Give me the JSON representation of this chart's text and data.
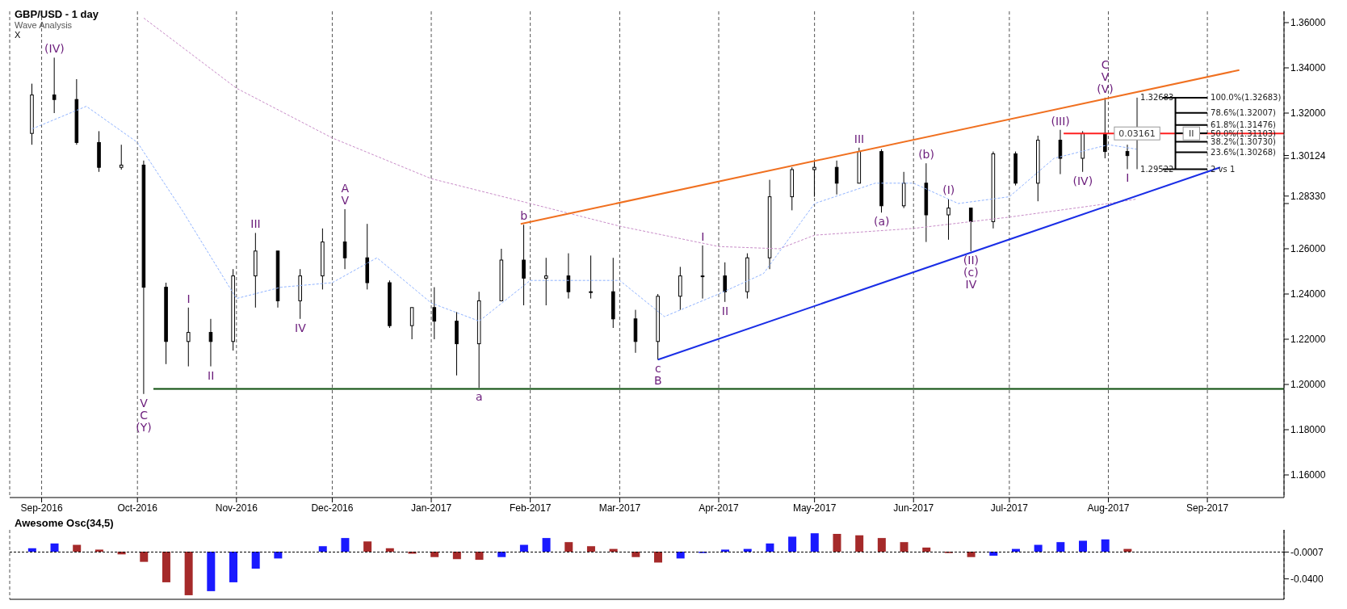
{
  "chart_data": [
    {
      "type": "candlestick",
      "title": "GBP/USD - 1 day",
      "subtitle": "Wave Analysis",
      "x": [
        "2016-08-29",
        "2016-09-05",
        "2016-09-12",
        "2016-09-19",
        "2016-09-26",
        "2016-10-03",
        "2016-10-10",
        "2016-10-17",
        "2016-10-24",
        "2016-10-31",
        "2016-11-07",
        "2016-11-14",
        "2016-11-21",
        "2016-11-28",
        "2016-12-05",
        "2016-12-12",
        "2016-12-19",
        "2016-12-26",
        "2017-01-02",
        "2017-01-09",
        "2017-01-16",
        "2017-01-23",
        "2017-01-30",
        "2017-02-06",
        "2017-02-13",
        "2017-02-20",
        "2017-02-27",
        "2017-03-06",
        "2017-03-13",
        "2017-03-20",
        "2017-03-27",
        "2017-04-03",
        "2017-04-10",
        "2017-04-17",
        "2017-04-24",
        "2017-05-01",
        "2017-05-08",
        "2017-05-15",
        "2017-05-22",
        "2017-05-29",
        "2017-06-05",
        "2017-06-12",
        "2017-06-19",
        "2017-06-26",
        "2017-07-03",
        "2017-07-10",
        "2017-07-17",
        "2017-07-24",
        "2017-07-31",
        "2017-08-07"
      ],
      "ohlc": [
        [
          1.311,
          1.333,
          1.306,
          1.328
        ],
        [
          1.328,
          1.3445,
          1.32,
          1.326
        ],
        [
          1.326,
          1.335,
          1.306,
          1.307
        ],
        [
          1.307,
          1.312,
          1.294,
          1.296
        ],
        [
          1.296,
          1.306,
          1.295,
          1.297
        ],
        [
          1.297,
          1.299,
          1.1958,
          1.243
        ],
        [
          1.243,
          1.245,
          1.209,
          1.219
        ],
        [
          1.219,
          1.234,
          1.208,
          1.223
        ],
        [
          1.223,
          1.229,
          1.208,
          1.219
        ],
        [
          1.219,
          1.251,
          1.215,
          1.248
        ],
        [
          1.248,
          1.267,
          1.234,
          1.259
        ],
        [
          1.259,
          1.259,
          1.234,
          1.237
        ],
        [
          1.237,
          1.251,
          1.229,
          1.248
        ],
        [
          1.248,
          1.269,
          1.242,
          1.263
        ],
        [
          1.263,
          1.2775,
          1.251,
          1.256
        ],
        [
          1.256,
          1.271,
          1.242,
          1.245
        ],
        [
          1.245,
          1.246,
          1.225,
          1.226
        ],
        [
          1.226,
          1.234,
          1.22,
          1.234
        ],
        [
          1.234,
          1.243,
          1.22,
          1.228
        ],
        [
          1.228,
          1.232,
          1.204,
          1.218
        ],
        [
          1.218,
          1.241,
          1.1985,
          1.237
        ],
        [
          1.237,
          1.26,
          1.237,
          1.255
        ],
        [
          1.255,
          1.2706,
          1.235,
          1.247
        ],
        [
          1.247,
          1.256,
          1.235,
          1.248
        ],
        [
          1.248,
          1.258,
          1.238,
          1.241
        ],
        [
          1.241,
          1.257,
          1.238,
          1.241
        ],
        [
          1.241,
          1.256,
          1.225,
          1.229
        ],
        [
          1.229,
          1.233,
          1.214,
          1.219
        ],
        [
          1.219,
          1.24,
          1.2109,
          1.239
        ],
        [
          1.239,
          1.252,
          1.233,
          1.248
        ],
        [
          1.248,
          1.2615,
          1.238,
          1.248
        ],
        [
          1.248,
          1.254,
          1.2365,
          1.241
        ],
        [
          1.241,
          1.258,
          1.238,
          1.256
        ],
        [
          1.256,
          1.2905,
          1.251,
          1.283
        ],
        [
          1.283,
          1.296,
          1.277,
          1.295
        ],
        [
          1.295,
          1.299,
          1.283,
          1.296
        ],
        [
          1.296,
          1.299,
          1.284,
          1.289
        ],
        [
          1.289,
          1.3047,
          1.289,
          1.303
        ],
        [
          1.303,
          1.304,
          1.276,
          1.279
        ],
        [
          1.279,
          1.294,
          1.278,
          1.289
        ],
        [
          1.289,
          1.2978,
          1.263,
          1.275
        ],
        [
          1.275,
          1.282,
          1.264,
          1.278
        ],
        [
          1.278,
          1.278,
          1.2589,
          1.272
        ],
        [
          1.272,
          1.303,
          1.269,
          1.302
        ],
        [
          1.302,
          1.303,
          1.288,
          1.289
        ],
        [
          1.289,
          1.31,
          1.281,
          1.308
        ],
        [
          1.308,
          1.3126,
          1.293,
          1.3
        ],
        [
          1.3,
          1.312,
          1.294,
          1.311
        ],
        [
          1.311,
          1.3268,
          1.3,
          1.303
        ],
        [
          1.303,
          1.306,
          1.2952,
          1.3012
        ]
      ],
      "series": [
        {
          "type": "line",
          "color": "#c88cc8",
          "line_style": "dashed",
          "x": [
            "2016-10-03",
            "2016-11-01",
            "2016-12-01",
            "2017-01-01",
            "2017-02-01",
            "2017-03-01",
            "2017-04-01",
            "2017-04-20",
            "2017-05-01",
            "2017-06-01",
            "2017-07-01",
            "2017-08-01",
            "2017-08-10"
          ],
          "values": [
            1.362,
            1.331,
            1.309,
            1.291,
            1.28,
            1.27,
            1.261,
            1.26,
            1.266,
            1.269,
            1.274,
            1.28,
            1.282
          ]
        },
        {
          "type": "line",
          "color": "#8fb3ff",
          "line_style": "dashed",
          "x": [
            "2016-08-29",
            "2016-09-15",
            "2016-10-01",
            "2016-10-15",
            "2016-11-01",
            "2016-11-15",
            "2016-12-01",
            "2016-12-15",
            "2017-01-01",
            "2017-01-16",
            "2017-02-01",
            "2017-03-01",
            "2017-03-15",
            "2017-04-01",
            "2017-04-15",
            "2017-05-01",
            "2017-05-20",
            "2017-06-01",
            "2017-06-15",
            "2017-07-01",
            "2017-07-15",
            "2017-08-01",
            "2017-08-10"
          ],
          "values": [
            1.313,
            1.323,
            1.307,
            1.277,
            1.238,
            1.243,
            1.245,
            1.256,
            1.236,
            1.228,
            1.246,
            1.246,
            1.23,
            1.24,
            1.249,
            1.28,
            1.289,
            1.289,
            1.28,
            1.283,
            1.3,
            1.306,
            1.304
          ]
        },
        {
          "type": "line",
          "color": "#0b4d0b",
          "line_style": "solid",
          "x": [
            "2016-10-06",
            "2017-09-25"
          ],
          "values": [
            1.198,
            1.198
          ]
        },
        {
          "type": "line",
          "color": "#f07020",
          "line_style": "solid",
          "x": [
            "2017-01-29",
            "2017-09-11"
          ],
          "values": [
            1.271,
            1.339
          ]
        },
        {
          "type": "line",
          "color": "#1a2ee6",
          "line_style": "solid",
          "x": [
            "2017-03-13",
            "2017-09-05"
          ],
          "values": [
            1.211,
            1.296
          ]
        },
        {
          "type": "line",
          "color": "#ff2020",
          "line_style": "solid",
          "x": [
            "2017-07-18",
            "2017-09-25"
          ],
          "values": [
            1.311,
            1.311
          ]
        },
        {
          "type": "line",
          "color": "#808080",
          "line_style": "solid",
          "x": [
            "2017-08-10",
            "2017-08-10"
          ],
          "values": [
            1.2952,
            1.32683
          ]
        },
        {
          "type": "line",
          "color": "#000000",
          "line_style": "solid",
          "x": [
            "2017-08-22",
            "2017-08-22"
          ],
          "values": [
            1.32683,
            1.2952
          ]
        },
        {
          "type": "line",
          "color": "#000000",
          "line_style": "solid",
          "x": [
            "2017-08-18",
            "2017-09-01"
          ],
          "values": [
            1.32683,
            1.32683
          ]
        },
        {
          "type": "line",
          "color": "#000000",
          "line_style": "solid",
          "x": [
            "2017-08-22",
            "2017-09-01"
          ],
          "values": [
            1.32007,
            1.32007
          ]
        },
        {
          "type": "line",
          "color": "#000000",
          "line_style": "solid",
          "x": [
            "2017-08-22",
            "2017-09-01"
          ],
          "values": [
            1.31476,
            1.31476
          ]
        },
        {
          "type": "line",
          "color": "#000000",
          "line_style": "solid",
          "x": [
            "2017-08-22",
            "2017-09-01"
          ],
          "values": [
            1.31103,
            1.31103
          ]
        },
        {
          "type": "line",
          "color": "#000000",
          "line_style": "solid",
          "x": [
            "2017-08-22",
            "2017-09-01"
          ],
          "values": [
            1.3073,
            1.3073
          ]
        },
        {
          "type": "line",
          "color": "#000000",
          "line_style": "solid",
          "x": [
            "2017-08-22",
            "2017-09-01"
          ],
          "values": [
            1.30268,
            1.30268
          ]
        },
        {
          "type": "line",
          "color": "#000000",
          "line_style": "solid",
          "x": [
            "2017-08-18",
            "2017-09-01"
          ],
          "values": [
            1.2952,
            1.2952
          ]
        }
      ],
      "xlim": [
        "2016-08-22",
        "2017-09-25"
      ],
      "xticks": [
        {
          "value": "2016-09-01",
          "label": "Sep-2016"
        },
        {
          "value": "2016-10-01",
          "label": "Oct-2016"
        },
        {
          "value": "2016-11-01",
          "label": "Nov-2016"
        },
        {
          "value": "2016-12-01",
          "label": "Dec-2016"
        },
        {
          "value": "2017-01-01",
          "label": "Jan-2017"
        },
        {
          "value": "2017-02-01",
          "label": "Feb-2017"
        },
        {
          "value": "2017-03-01",
          "label": "Mar-2017"
        },
        {
          "value": "2017-04-01",
          "label": "Apr-2017"
        },
        {
          "value": "2017-05-01",
          "label": "May-2017"
        },
        {
          "value": "2017-06-01",
          "label": "Jun-2017"
        },
        {
          "value": "2017-07-01",
          "label": "Jul-2017"
        },
        {
          "value": "2017-08-01",
          "label": "Aug-2017"
        },
        {
          "value": "2017-09-01",
          "label": "Sep-2017"
        }
      ],
      "ylim": [
        1.15,
        1.365
      ],
      "yticks": [
        {
          "value": 1.16,
          "label": "1.16000"
        },
        {
          "value": 1.18,
          "label": "1.18000"
        },
        {
          "value": 1.2,
          "label": "1.20000"
        },
        {
          "value": 1.22,
          "label": "1.22000"
        },
        {
          "value": 1.24,
          "label": "1.24000"
        },
        {
          "value": 1.26,
          "label": "1.26000"
        },
        {
          "value": 1.28,
          "label": null
        },
        {
          "value": 1.2833,
          "label": "1.28330"
        },
        {
          "value": 1.3,
          "label": null
        },
        {
          "value": 1.30124,
          "label": "1.30124"
        },
        {
          "value": 1.32,
          "label": "1.32000"
        },
        {
          "value": 1.34,
          "label": "1.34000"
        },
        {
          "value": 1.36,
          "label": "1.36000"
        }
      ],
      "grid": "x",
      "annotations": [
        {
          "text": "(IV)",
          "x": "2016-09-05",
          "y": 1.3445
        },
        {
          "text": "V",
          "x": "2016-10-03",
          "y": 1.1958
        },
        {
          "text": "C",
          "x": "2016-10-03",
          "y": 1.1958
        },
        {
          "text": "(Y)",
          "x": "2016-10-03",
          "y": 1.1958
        },
        "X",
        {
          "text": "I",
          "x": "2016-10-17",
          "y": 1.234
        },
        {
          "text": "II",
          "x": "2016-10-24",
          "y": 1.208
        },
        {
          "text": "III",
          "x": "2016-11-07",
          "y": 1.267
        },
        {
          "text": "IV",
          "x": "2016-11-21",
          "y": 1.229
        },
        {
          "text": "V",
          "x": "2016-12-05",
          "y": 1.2775
        },
        {
          "text": "A",
          "x": "2016-12-05",
          "y": 1.2775
        },
        {
          "text": "a",
          "x": "2017-01-16",
          "y": 1.1985
        },
        {
          "text": "b",
          "x": "2017-01-30",
          "y": 1.2706
        },
        {
          "text": "c",
          "x": "2017-03-13",
          "y": 1.2109
        },
        {
          "text": "B",
          "x": "2017-03-13",
          "y": 1.2109
        },
        {
          "text": "I",
          "x": "2017-03-27",
          "y": 1.2615
        },
        {
          "text": "II",
          "x": "2017-04-03",
          "y": 1.2365
        },
        {
          "text": "III",
          "x": "2017-05-15",
          "y": 1.3047
        },
        {
          "text": "(a)",
          "x": "2017-05-22",
          "y": 1.276
        },
        {
          "text": "(b)",
          "x": "2017-06-05",
          "y": 1.2978
        },
        {
          "text": "(I)",
          "x": "2017-06-12",
          "y": 1.282
        },
        {
          "text": "(II)",
          "x": "2017-06-19",
          "y": 1.2589
        },
        {
          "text": "(c)",
          "x": "2017-06-19",
          "y": 1.2589
        },
        {
          "text": "IV",
          "x": "2017-06-19",
          "y": 1.2589
        },
        {
          "text": "(III)",
          "x": "2017-07-17",
          "y": 1.3126
        },
        {
          "text": "(IV)",
          "x": "2017-07-24",
          "y": 1.294
        },
        {
          "text": "(V)",
          "x": "2017-07-31",
          "y": 1.3268
        },
        {
          "text": "V",
          "x": "2017-07-31",
          "y": 1.3268
        },
        {
          "text": "C",
          "x": "2017-07-31",
          "y": 1.3268
        },
        {
          "text": "I",
          "x": "2017-08-07",
          "y": 1.2952
        },
        {
          "text": "II",
          "x": "2017-08-27",
          "y": 1.311
        },
        {
          "text": "1.32683",
          "x": "2017-08-10",
          "y": 1.32683
        },
        {
          "text": "0.03161",
          "x": "2017-08-10",
          "y": 1.311
        },
        {
          "text": "1.29522",
          "x": "2017-08-10",
          "y": 1.2952
        },
        {
          "text": "100.0%(1.32683)",
          "x": "2017-09-01",
          "y": 1.32683
        },
        {
          "text": "78.6%(1.32007)",
          "x": "2017-09-01",
          "y": 1.32007
        },
        {
          "text": "61.8%(1.31476)",
          "x": "2017-09-01",
          "y": 1.31476
        },
        {
          "text": "50.0%(1.31103)",
          "x": "2017-09-01",
          "y": 1.31103
        },
        {
          "text": "38.2%(1.30730)",
          "x": "2017-09-01",
          "y": 1.3073
        },
        {
          "text": "23.6%(1.30268)",
          "x": "2017-09-01",
          "y": 1.30268
        },
        {
          "text": "2 vs 1",
          "x": "2017-09-01",
          "y": 1.2952
        }
      ]
    },
    {
      "type": "bar",
      "title": "Awesome Osc(34,5)",
      "x": [
        "2016-08-29",
        "2016-09-05",
        "2016-09-12",
        "2016-09-19",
        "2016-09-26",
        "2016-10-03",
        "2016-10-10",
        "2016-10-17",
        "2016-10-24",
        "2016-10-31",
        "2016-11-07",
        "2016-11-14",
        "2016-11-21",
        "2016-11-28",
        "2016-12-05",
        "2016-12-12",
        "2016-12-19",
        "2016-12-26",
        "2017-01-02",
        "2017-01-09",
        "2017-01-16",
        "2017-01-23",
        "2017-01-30",
        "2017-02-06",
        "2017-02-13",
        "2017-02-20",
        "2017-02-27",
        "2017-03-06",
        "2017-03-13",
        "2017-03-20",
        "2017-03-27",
        "2017-04-03",
        "2017-04-10",
        "2017-04-17",
        "2017-04-24",
        "2017-05-01",
        "2017-05-08",
        "2017-05-15",
        "2017-05-22",
        "2017-05-29",
        "2017-06-05",
        "2017-06-12",
        "2017-06-19",
        "2017-06-26",
        "2017-07-03",
        "2017-07-10",
        "2017-07-17",
        "2017-07-24",
        "2017-07-31",
        "2017-08-07"
      ],
      "values": [
        0.005,
        0.012,
        0.01,
        0.003,
        -0.004,
        -0.015,
        -0.045,
        -0.064,
        -0.058,
        -0.045,
        -0.025,
        -0.01,
        0,
        0.008,
        0.02,
        0.015,
        0.005,
        -0.003,
        -0.008,
        -0.011,
        -0.012,
        -0.008,
        0.01,
        0.02,
        0.014,
        0.008,
        0.004,
        -0.008,
        -0.016,
        -0.01,
        -0.002,
        0.003,
        0.004,
        0.012,
        0.022,
        0.027,
        0.026,
        0.024,
        0.02,
        0.014,
        0.006,
        -0.002,
        -0.008,
        -0.006,
        0.004,
        0.01,
        0.014,
        0.016,
        0.018,
        0.004
      ],
      "xticks": [
        {
          "value": "2016-09-01",
          "label": null
        },
        {
          "value": "2016-10-01",
          "label": null
        },
        {
          "value": "2016-11-01",
          "label": null
        },
        {
          "value": "2016-12-01",
          "label": null
        },
        {
          "value": "2017-01-01",
          "label": null
        },
        {
          "value": "2017-02-01",
          "label": null
        },
        {
          "value": "2017-03-01",
          "label": null
        },
        {
          "value": "2017-04-01",
          "label": null
        },
        {
          "value": "2017-05-01",
          "label": null
        },
        {
          "value": "2017-06-01",
          "label": null
        },
        {
          "value": "2017-07-01",
          "label": null
        },
        {
          "value": "2017-08-01",
          "label": null
        },
        {
          "value": "2017-09-01",
          "label": null
        }
      ],
      "colors": [
        "#1a1aff",
        "#1a1aff",
        "#a52a2a",
        "#a52a2a",
        "#a52a2a",
        "#a52a2a",
        "#a52a2a",
        "#a52a2a",
        "#1a1aff",
        "#1a1aff",
        "#1a1aff",
        "#1a1aff",
        "#1a1aff",
        "#1a1aff",
        "#1a1aff",
        "#a52a2a",
        "#a52a2a",
        "#a52a2a",
        "#a52a2a",
        "#a52a2a",
        "#a52a2a",
        "#1a1aff",
        "#1a1aff",
        "#1a1aff",
        "#a52a2a",
        "#a52a2a",
        "#a52a2a",
        "#a52a2a",
        "#a52a2a",
        "#1a1aff",
        "#1a1aff",
        "#1a1aff",
        "#1a1aff",
        "#1a1aff",
        "#1a1aff",
        "#1a1aff",
        "#a52a2a",
        "#a52a2a",
        "#a52a2a",
        "#a52a2a",
        "#a52a2a",
        "#a52a2a",
        "#a52a2a",
        "#1a1aff",
        "#1a1aff",
        "#1a1aff",
        "#1a1aff",
        "#1a1aff",
        "#1a1aff",
        "#a52a2a"
      ],
      "xlim": [
        "2016-08-22",
        "2017-09-25"
      ],
      "ylim": [
        -0.07,
        0.032
      ],
      "yticks": [
        {
          "value": -0.0007,
          "label": "-0.0007"
        },
        {
          "value": -0.04,
          "label": "-0.0400"
        }
      ],
      "grid": "x",
      "tick_labels": "y",
      "ref_lines": [
        {
          "axis": "y",
          "value": -0.0007,
          "color": "#000000",
          "line_style": "dashed"
        }
      ]
    }
  ]
}
